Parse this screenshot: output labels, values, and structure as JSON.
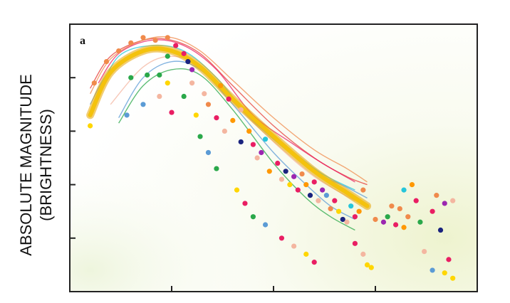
{
  "chart_data": {
    "type": "scatter",
    "panel_label": "a",
    "title": "",
    "xlabel": "",
    "ylabel_lines": [
      "ABSOLUTE MAGNITUDE",
      "(BRIGHTNESS)"
    ],
    "xlim": [
      0,
      100
    ],
    "ylim": [
      0,
      100
    ],
    "x_ticks": [
      25,
      50,
      75
    ],
    "y_ticks": [
      20,
      40,
      60,
      80
    ],
    "tick_labels_shown": false,
    "grid": false,
    "legend": "none",
    "colors": {
      "band": "#f4c20d",
      "band_edge": "#e8a400",
      "frame": "#222222",
      "points": [
        "#f08a4b",
        "#e91e63",
        "#ffd600",
        "#5b9bd5",
        "#2aa84a",
        "#f4b6a0",
        "#1a237e",
        "#9c27b0",
        "#ff9800",
        "#26c6da",
        "#e53935",
        "#a6d96a"
      ]
    },
    "series": [
      {
        "color": "#e53935",
        "x": [
          5,
          10,
          18,
          25,
          32,
          40,
          50,
          60,
          68,
          73
        ],
        "y": [
          76,
          88,
          94,
          94,
          89,
          77,
          62,
          50,
          43,
          40
        ]
      },
      {
        "color": "#f08a4b",
        "x": [
          5,
          10,
          18,
          25,
          32,
          40,
          50,
          60,
          68,
          73
        ],
        "y": [
          74,
          87,
          94,
          95,
          90,
          79,
          65,
          53,
          46,
          41
        ]
      },
      {
        "color": "#5b9bd5",
        "x": [
          5,
          10,
          18,
          25,
          32,
          40,
          50,
          60,
          68,
          73
        ],
        "y": [
          70,
          83,
          90,
          90,
          84,
          71,
          57,
          45,
          39,
          35
        ]
      },
      {
        "color": "#2aa84a",
        "x": [
          12,
          18,
          25,
          32,
          40,
          50,
          58,
          64,
          70
        ],
        "y": [
          63,
          77,
          83,
          81,
          68,
          48,
          35,
          28,
          23
        ]
      },
      {
        "color": "#5b9bd5",
        "x": [
          12,
          18,
          25,
          32,
          40,
          50,
          58,
          64,
          70
        ],
        "y": [
          65,
          80,
          86,
          83,
          70,
          52,
          40,
          32,
          27
        ]
      },
      {
        "color": "#f4b6a0",
        "x": [
          10,
          18,
          25,
          32,
          40,
          50,
          60,
          70
        ],
        "y": [
          70,
          84,
          88,
          84,
          71,
          56,
          43,
          34
        ]
      },
      {
        "color": "#26c6da",
        "x": [
          7,
          12,
          20,
          28,
          36,
          45,
          55,
          62,
          70
        ],
        "y": [
          74,
          88,
          92,
          90,
          80,
          64,
          52,
          44,
          38
        ]
      },
      {
        "color": "#e91e63",
        "x": [
          7,
          12,
          20,
          28,
          36,
          45,
          55,
          62,
          70
        ],
        "y": [
          78,
          89,
          94,
          92,
          83,
          66,
          55,
          48,
          41
        ]
      }
    ],
    "band": {
      "x": [
        5,
        10,
        18,
        25,
        32,
        40,
        50,
        60,
        68,
        73
      ],
      "y": [
        66,
        82,
        90,
        90,
        84,
        72,
        58,
        45,
        37,
        32
      ]
    },
    "points": [
      {
        "color": "#ffd600",
        "x": 5,
        "y": 62
      },
      {
        "color": "#f08a4b",
        "x": 6,
        "y": 78
      },
      {
        "color": "#f08a4b",
        "x": 9,
        "y": 86
      },
      {
        "color": "#f08a4b",
        "x": 12,
        "y": 90
      },
      {
        "color": "#f08a4b",
        "x": 15,
        "y": 93
      },
      {
        "color": "#f08a4b",
        "x": 18,
        "y": 95
      },
      {
        "color": "#f08a4b",
        "x": 21,
        "y": 94
      },
      {
        "color": "#f08a4b",
        "x": 24,
        "y": 95
      },
      {
        "color": "#e91e63",
        "x": 26,
        "y": 92
      },
      {
        "color": "#e91e63",
        "x": 28,
        "y": 89
      },
      {
        "color": "#1a237e",
        "x": 29,
        "y": 86
      },
      {
        "color": "#9c27b0",
        "x": 30,
        "y": 83
      },
      {
        "color": "#2aa84a",
        "x": 24,
        "y": 88
      },
      {
        "color": "#2aa84a",
        "x": 15,
        "y": 80
      },
      {
        "color": "#2aa84a",
        "x": 19,
        "y": 81
      },
      {
        "color": "#2aa84a",
        "x": 22,
        "y": 81
      },
      {
        "color": "#ffd600",
        "x": 24,
        "y": 78
      },
      {
        "color": "#2aa84a",
        "x": 28,
        "y": 73
      },
      {
        "color": "#ffd600",
        "x": 31,
        "y": 66
      },
      {
        "color": "#2aa84a",
        "x": 32,
        "y": 58
      },
      {
        "color": "#5b9bd5",
        "x": 34,
        "y": 52
      },
      {
        "color": "#2aa84a",
        "x": 36,
        "y": 46
      },
      {
        "color": "#ffd600",
        "x": 41,
        "y": 38
      },
      {
        "color": "#e91e63",
        "x": 43,
        "y": 33
      },
      {
        "color": "#2aa84a",
        "x": 45,
        "y": 28
      },
      {
        "color": "#5b9bd5",
        "x": 48,
        "y": 25
      },
      {
        "color": "#e91e63",
        "x": 52,
        "y": 20
      },
      {
        "color": "#f4b6a0",
        "x": 55,
        "y": 17
      },
      {
        "color": "#ffd600",
        "x": 58,
        "y": 14
      },
      {
        "color": "#e91e63",
        "x": 60,
        "y": 11
      },
      {
        "color": "#5b9bd5",
        "x": 14,
        "y": 66
      },
      {
        "color": "#5b9bd5",
        "x": 18,
        "y": 70
      },
      {
        "color": "#f4b6a0",
        "x": 22,
        "y": 73
      },
      {
        "color": "#e91e63",
        "x": 25,
        "y": 67
      },
      {
        "color": "#f4b6a0",
        "x": 30,
        "y": 78
      },
      {
        "color": "#f4b6a0",
        "x": 33,
        "y": 74
      },
      {
        "color": "#f08a4b",
        "x": 34,
        "y": 70
      },
      {
        "color": "#e91e63",
        "x": 36,
        "y": 65
      },
      {
        "color": "#ff9800",
        "x": 37,
        "y": 77
      },
      {
        "color": "#f4b6a0",
        "x": 38,
        "y": 60
      },
      {
        "color": "#e91e63",
        "x": 39,
        "y": 72
      },
      {
        "color": "#ff9800",
        "x": 40,
        "y": 64
      },
      {
        "color": "#f4b6a0",
        "x": 42,
        "y": 68
      },
      {
        "color": "#1a237e",
        "x": 42,
        "y": 56
      },
      {
        "color": "#ff9800",
        "x": 44,
        "y": 60
      },
      {
        "color": "#e91e63",
        "x": 45,
        "y": 55
      },
      {
        "color": "#f4b6a0",
        "x": 46,
        "y": 50
      },
      {
        "color": "#9c27b0",
        "x": 47,
        "y": 52
      },
      {
        "color": "#26c6da",
        "x": 48,
        "y": 57
      },
      {
        "color": "#ff9800",
        "x": 49,
        "y": 45
      },
      {
        "color": "#e91e63",
        "x": 51,
        "y": 48
      },
      {
        "color": "#f4b6a0",
        "x": 52,
        "y": 42
      },
      {
        "color": "#1a237e",
        "x": 53,
        "y": 45
      },
      {
        "color": "#ffd600",
        "x": 54,
        "y": 40
      },
      {
        "color": "#9c27b0",
        "x": 55,
        "y": 43
      },
      {
        "color": "#e91e63",
        "x": 56,
        "y": 38
      },
      {
        "color": "#f08a4b",
        "x": 57,
        "y": 44
      },
      {
        "color": "#ff9800",
        "x": 58,
        "y": 40
      },
      {
        "color": "#1a237e",
        "x": 59,
        "y": 36
      },
      {
        "color": "#e91e63",
        "x": 60,
        "y": 41
      },
      {
        "color": "#f4b6a0",
        "x": 61,
        "y": 34
      },
      {
        "color": "#9c27b0",
        "x": 62,
        "y": 38
      },
      {
        "color": "#5b9bd5",
        "x": 63,
        "y": 36
      },
      {
        "color": "#f08a4b",
        "x": 64,
        "y": 31
      },
      {
        "color": "#e91e63",
        "x": 65,
        "y": 34
      },
      {
        "color": "#ffd600",
        "x": 66,
        "y": 30
      },
      {
        "color": "#1a237e",
        "x": 67,
        "y": 27
      },
      {
        "color": "#f4b6a0",
        "x": 68,
        "y": 26
      },
      {
        "color": "#26c6da",
        "x": 69,
        "y": 32
      },
      {
        "color": "#e91e63",
        "x": 70,
        "y": 28
      },
      {
        "color": "#ff9800",
        "x": 71,
        "y": 30
      },
      {
        "color": "#f08a4b",
        "x": 72,
        "y": 38
      },
      {
        "color": "#e91e63",
        "x": 70,
        "y": 18
      },
      {
        "color": "#f4b6a0",
        "x": 72,
        "y": 14
      },
      {
        "color": "#ffd600",
        "x": 73,
        "y": 10
      },
      {
        "color": "#ffd600",
        "x": 74,
        "y": 9
      },
      {
        "color": "#f08a4b",
        "x": 75,
        "y": 27
      },
      {
        "color": "#9c27b0",
        "x": 77,
        "y": 26
      },
      {
        "color": "#2aa84a",
        "x": 78,
        "y": 28
      },
      {
        "color": "#f08a4b",
        "x": 79,
        "y": 32
      },
      {
        "color": "#e91e63",
        "x": 80,
        "y": 25
      },
      {
        "color": "#f08a4b",
        "x": 81,
        "y": 31
      },
      {
        "color": "#ff9800",
        "x": 82,
        "y": 24
      },
      {
        "color": "#26c6da",
        "x": 82,
        "y": 38
      },
      {
        "color": "#f08a4b",
        "x": 83,
        "y": 28
      },
      {
        "color": "#ff9800",
        "x": 84,
        "y": 40
      },
      {
        "color": "#e91e63",
        "x": 85,
        "y": 34
      },
      {
        "color": "#2aa84a",
        "x": 86,
        "y": 26
      },
      {
        "color": "#f4b6a0",
        "x": 87,
        "y": 15
      },
      {
        "color": "#e91e63",
        "x": 89,
        "y": 30
      },
      {
        "color": "#f08a4b",
        "x": 90,
        "y": 36
      },
      {
        "color": "#1a237e",
        "x": 91,
        "y": 23
      },
      {
        "color": "#5b9bd5",
        "x": 89,
        "y": 8
      },
      {
        "color": "#ffd600",
        "x": 92,
        "y": 7
      },
      {
        "color": "#ffd600",
        "x": 94,
        "y": 5
      },
      {
        "color": "#e91e63",
        "x": 93,
        "y": 12
      },
      {
        "color": "#9c27b0",
        "x": 92,
        "y": 33
      },
      {
        "color": "#f4b6a0",
        "x": 94,
        "y": 34
      }
    ]
  }
}
